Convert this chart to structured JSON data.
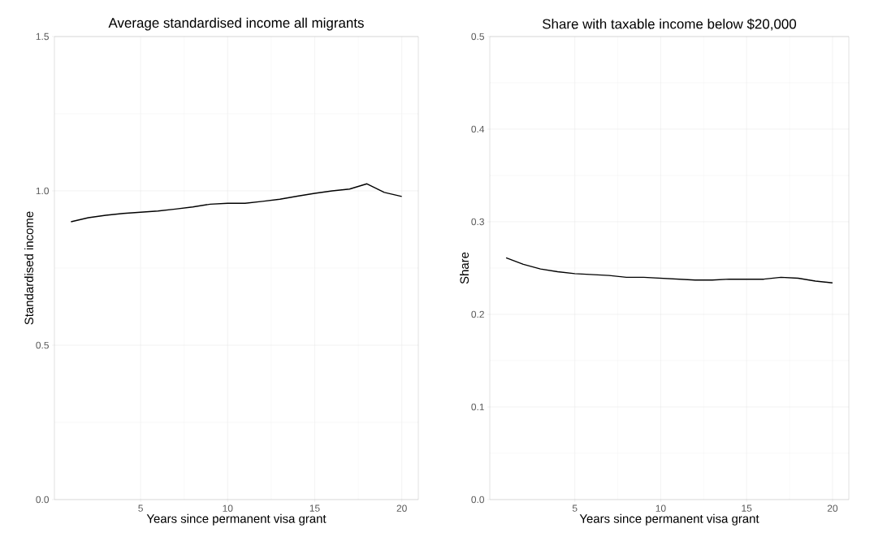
{
  "chart_data": [
    {
      "type": "line",
      "title": "Average standardised income all migrants",
      "xlabel": "Years since permanent visa grant",
      "ylabel": "Standardised income",
      "x": [
        1,
        2,
        3,
        4,
        5,
        6,
        7,
        8,
        9,
        10,
        11,
        12,
        13,
        14,
        15,
        16,
        17,
        18,
        19,
        20
      ],
      "series": [
        {
          "color": "#000000",
          "values": [
            0.9,
            0.913,
            0.921,
            0.927,
            0.931,
            0.935,
            0.941,
            0.948,
            0.957,
            0.96,
            0.96,
            0.966,
            0.973,
            0.983,
            0.992,
            1.0,
            1.006,
            1.023,
            0.995,
            0.982
          ]
        }
      ],
      "xlim": [
        0.05,
        20.95
      ],
      "ylim": [
        0,
        1.5
      ],
      "xticks": [
        5,
        10,
        15,
        20
      ],
      "yticks": [
        {
          "value": 0,
          "label": "0.0"
        },
        {
          "value": 0.5,
          "label": "0.5"
        },
        {
          "value": 1,
          "label": "1.0"
        },
        {
          "value": 1.5,
          "label": "1.5"
        }
      ],
      "grid": true,
      "marker": "none",
      "line_style": "solid"
    },
    {
      "type": "line",
      "title": "Share with taxable income below $20,000",
      "xlabel": "Years since permanent visa grant",
      "ylabel": "Share",
      "x": [
        1,
        2,
        3,
        4,
        5,
        6,
        7,
        8,
        9,
        10,
        11,
        12,
        13,
        14,
        15,
        16,
        17,
        18,
        19,
        20
      ],
      "series": [
        {
          "color": "#000000",
          "values": [
            0.261,
            0.254,
            0.249,
            0.246,
            0.244,
            0.243,
            0.242,
            0.24,
            0.24,
            0.239,
            0.238,
            0.237,
            0.237,
            0.238,
            0.238,
            0.238,
            0.24,
            0.239,
            0.236,
            0.234
          ]
        }
      ],
      "xlim": [
        0.05,
        20.95
      ],
      "ylim": [
        0,
        0.5
      ],
      "xticks": [
        5,
        10,
        15,
        20
      ],
      "yticks": [
        {
          "value": 0,
          "label": "0.0"
        },
        {
          "value": 0.1,
          "label": "0.1"
        },
        {
          "value": 0.2,
          "label": "0.2"
        },
        {
          "value": 0.3,
          "label": "0.3"
        },
        {
          "value": 0.4,
          "label": "0.4"
        },
        {
          "value": 0.5,
          "label": "0.5"
        }
      ],
      "grid": true,
      "marker": "none",
      "line_style": "solid"
    }
  ]
}
